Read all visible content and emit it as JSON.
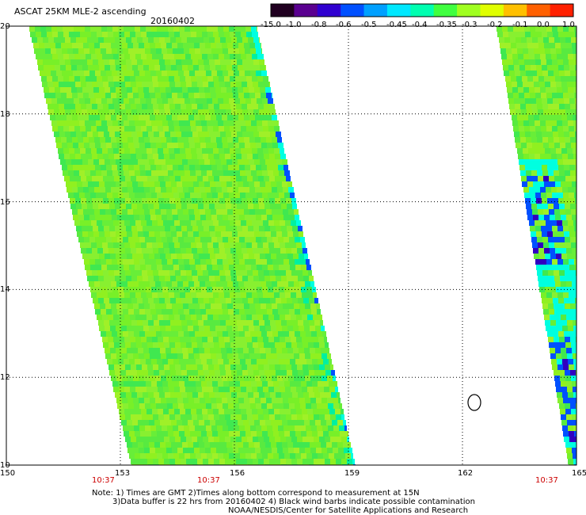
{
  "header": {
    "title": "ASCAT 25KM MLE-2 ascending",
    "date": "20160402"
  },
  "colorbar": {
    "labels": [
      "-15.0",
      "-1.0",
      "-0.8",
      "-0.6",
      "-0.5",
      "-0.45",
      "-0.4",
      "-0.35",
      "-0.3",
      "-0.2",
      "-0.1",
      "0.0",
      "1.0"
    ],
    "colors": [
      "#200020",
      "#5a0090",
      "#3000d0",
      "#0050ff",
      "#00a0ff",
      "#00e8ff",
      "#00ffb0",
      "#40ff40",
      "#a0ff20",
      "#e0ff00",
      "#ffc000",
      "#ff6000",
      "#ff2000"
    ]
  },
  "axes": {
    "lon_range": [
      150,
      165
    ],
    "lat_range": [
      10,
      20
    ],
    "x_ticks": [
      "150",
      "153",
      "156",
      "159",
      "162",
      "165"
    ],
    "y_ticks": [
      "20",
      "18",
      "16",
      "14",
      "12",
      "10"
    ],
    "grid": true
  },
  "time_labels": [
    "10:37",
    "10:37",
    "10:37"
  ],
  "notes": [
    "Note: 1) Times are GMT 2)Times along bottom correspond to measurement at 15N",
    "3)Data buffer is 22 hrs from 20160402 4) Black wind barbs indicate possible contamination",
    "NOAA/NESDIS/Center for Satellite Applications and Research"
  ],
  "swaths": [
    {
      "name": "left-swath",
      "lat_top": 20,
      "lat_bottom": 10,
      "west_lon_top": 150.6,
      "west_lon_bottom": 153.3,
      "east_lon_top": 156.6,
      "east_lon_bottom": 159.2
    },
    {
      "name": "right-swath",
      "lat_top": 20,
      "lat_bottom": 10,
      "west_lon_top": 162.9,
      "west_lon_bottom": 164.8,
      "east_lon_top": 165,
      "east_lon_bottom": 165
    }
  ],
  "colors": {
    "field_base": "#78f028",
    "field_light": "#a0f028",
    "field_green": "#40e850",
    "edge_cyan": "#00ffe0",
    "edge_blue": "#0050ff",
    "edge_dark": "#3000c0"
  }
}
